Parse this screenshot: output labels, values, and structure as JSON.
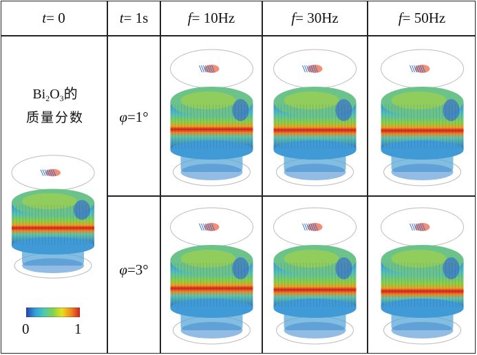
{
  "headers": {
    "t0": {
      "var": "t",
      "rest": " = 0"
    },
    "t1": {
      "var": "t",
      "rest": " = 1s"
    },
    "f10": {
      "var": "f",
      "rest": " = 10Hz"
    },
    "f30": {
      "var": "f",
      "rest": " = 30Hz"
    },
    "f50": {
      "var": "f",
      "rest": " = 50Hz"
    }
  },
  "quantity": {
    "main": "Bi",
    "sub1": "2",
    "mid": "O",
    "sub2": "3",
    "tail": "的",
    "line2": "质量分数"
  },
  "rows": [
    {
      "var": "φ",
      "rest": " =1°"
    },
    {
      "var": "φ",
      "rest": " =3°"
    }
  ],
  "colorbar": {
    "min": "0",
    "max": "1",
    "stops": [
      "#2b3fb0",
      "#2f9fd8",
      "#4fc9b0",
      "#7fd24a",
      "#e8e020",
      "#f08a20",
      "#d81e1e"
    ]
  },
  "simulations": [
    {
      "id": "t0",
      "level": 0.55
    },
    {
      "id": "r1-f10",
      "level": 0.6
    },
    {
      "id": "r1-f30",
      "level": 0.55
    },
    {
      "id": "r1-f50",
      "level": 0.52
    },
    {
      "id": "r2-f10",
      "level": 0.55
    },
    {
      "id": "r2-f30",
      "level": 0.45
    },
    {
      "id": "r2-f50",
      "level": 0.35
    }
  ]
}
